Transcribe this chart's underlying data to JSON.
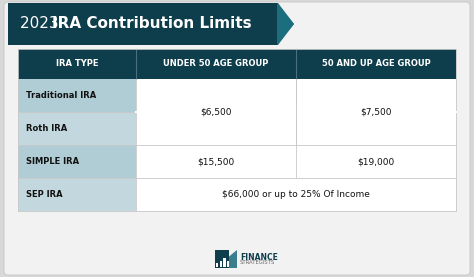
{
  "title_year": "2023 ",
  "title_bold": "IRA Contribution Limits",
  "bg_color": "#d8d8d8",
  "card_color": "#f2f2f2",
  "header_bg": "#0e3d4c",
  "header_text_color": "#ffffff",
  "row_colors": [
    "#b0cdd5",
    "#c2d8de",
    "#b0cdd5",
    "#c2d8de"
  ],
  "data_bg": "#ffffff",
  "col_headers": [
    "IRA TYPE",
    "UNDER 50 AGE GROUP",
    "50 AND UP AGE GROUP"
  ],
  "rows": [
    {
      "label": "Traditional IRA",
      "under50": "",
      "over50": "",
      "merged_data": false,
      "span_rows": true
    },
    {
      "label": "Roth IRA",
      "under50": "",
      "over50": "",
      "merged_data": false,
      "span_rows": false
    },
    {
      "label": "SIMPLE IRA",
      "under50": "$15,500",
      "over50": "$19,000",
      "merged_data": false,
      "span_rows": false
    },
    {
      "label": "SEP IRA",
      "under50": "$66,000 or up to 25% Of Income",
      "over50": "",
      "merged_data": true,
      "span_rows": false
    }
  ],
  "span_value_under50": "$6,500",
  "span_value_over50": "$7,500",
  "banner_color": "#0e3d4c",
  "banner_tip_color": "#1a6e7e",
  "footer_color": "#0e3d4c",
  "footer_text": "FINANCE\nSTRATEGISTS"
}
